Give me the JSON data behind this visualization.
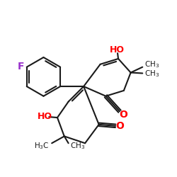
{
  "bg": "#ffffff",
  "bc": "#1a1a1a",
  "bw": 1.5,
  "fc": "#9933cc",
  "oc": "#ff0000",
  "tc": "#1a1a1a",
  "figsize": [
    2.5,
    2.5
  ],
  "dpi": 100,
  "xlim": [
    0,
    250
  ],
  "ylim": [
    0,
    250
  ]
}
